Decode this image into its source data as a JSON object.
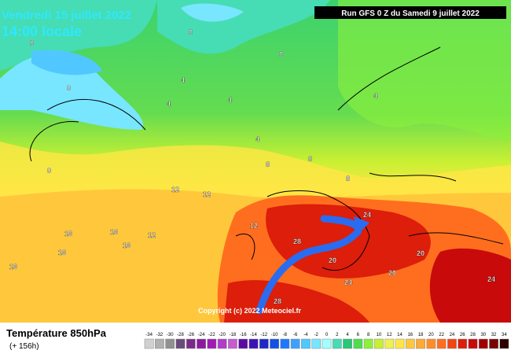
{
  "header": {
    "title": "Vendredi 15 juillet 2022",
    "time": "14:00 locale",
    "run": "Run GFS 0 Z du Samedi 9 juillet 2022"
  },
  "footer": {
    "variable": "Température 850hPa",
    "lead": "(+ 156h)",
    "copyright": "Copyright (c) 2022 Meteociel.fr"
  },
  "legend": {
    "values": [
      -34,
      -32,
      -30,
      -28,
      -26,
      -24,
      -22,
      -20,
      -18,
      -16,
      -14,
      -12,
      -10,
      -8,
      -6,
      -4,
      -2,
      0,
      2,
      4,
      6,
      8,
      10,
      12,
      14,
      16,
      18,
      20,
      22,
      24,
      26,
      28,
      30,
      32,
      34
    ],
    "colors": [
      "#d0d0d0",
      "#b0b0b0",
      "#909090",
      "#6a4a7a",
      "#7a2a8a",
      "#8c1aa0",
      "#a01ab4",
      "#b03cc8",
      "#c85ad2",
      "#5a0aa0",
      "#3c14b4",
      "#1e28c8",
      "#1450e6",
      "#1e78ff",
      "#3ca0ff",
      "#50c8ff",
      "#78e6ff",
      "#a0ffff",
      "#46dcb4",
      "#28c878",
      "#50dc50",
      "#8cf03c",
      "#c8f032",
      "#f0f050",
      "#ffe646",
      "#ffc83c",
      "#ffaa32",
      "#ff8c28",
      "#ff6e1e",
      "#f04614",
      "#dc1e0a",
      "#c80a0a",
      "#a00000",
      "#780000",
      "#2a0000"
    ]
  },
  "contour_labels": [
    0,
    0,
    0,
    0,
    0,
    4,
    4,
    4,
    4,
    4,
    8,
    8,
    8,
    12,
    12,
    12,
    12,
    16,
    16,
    16,
    16,
    16,
    20,
    20,
    20,
    24,
    24,
    28,
    28,
    24
  ]
}
